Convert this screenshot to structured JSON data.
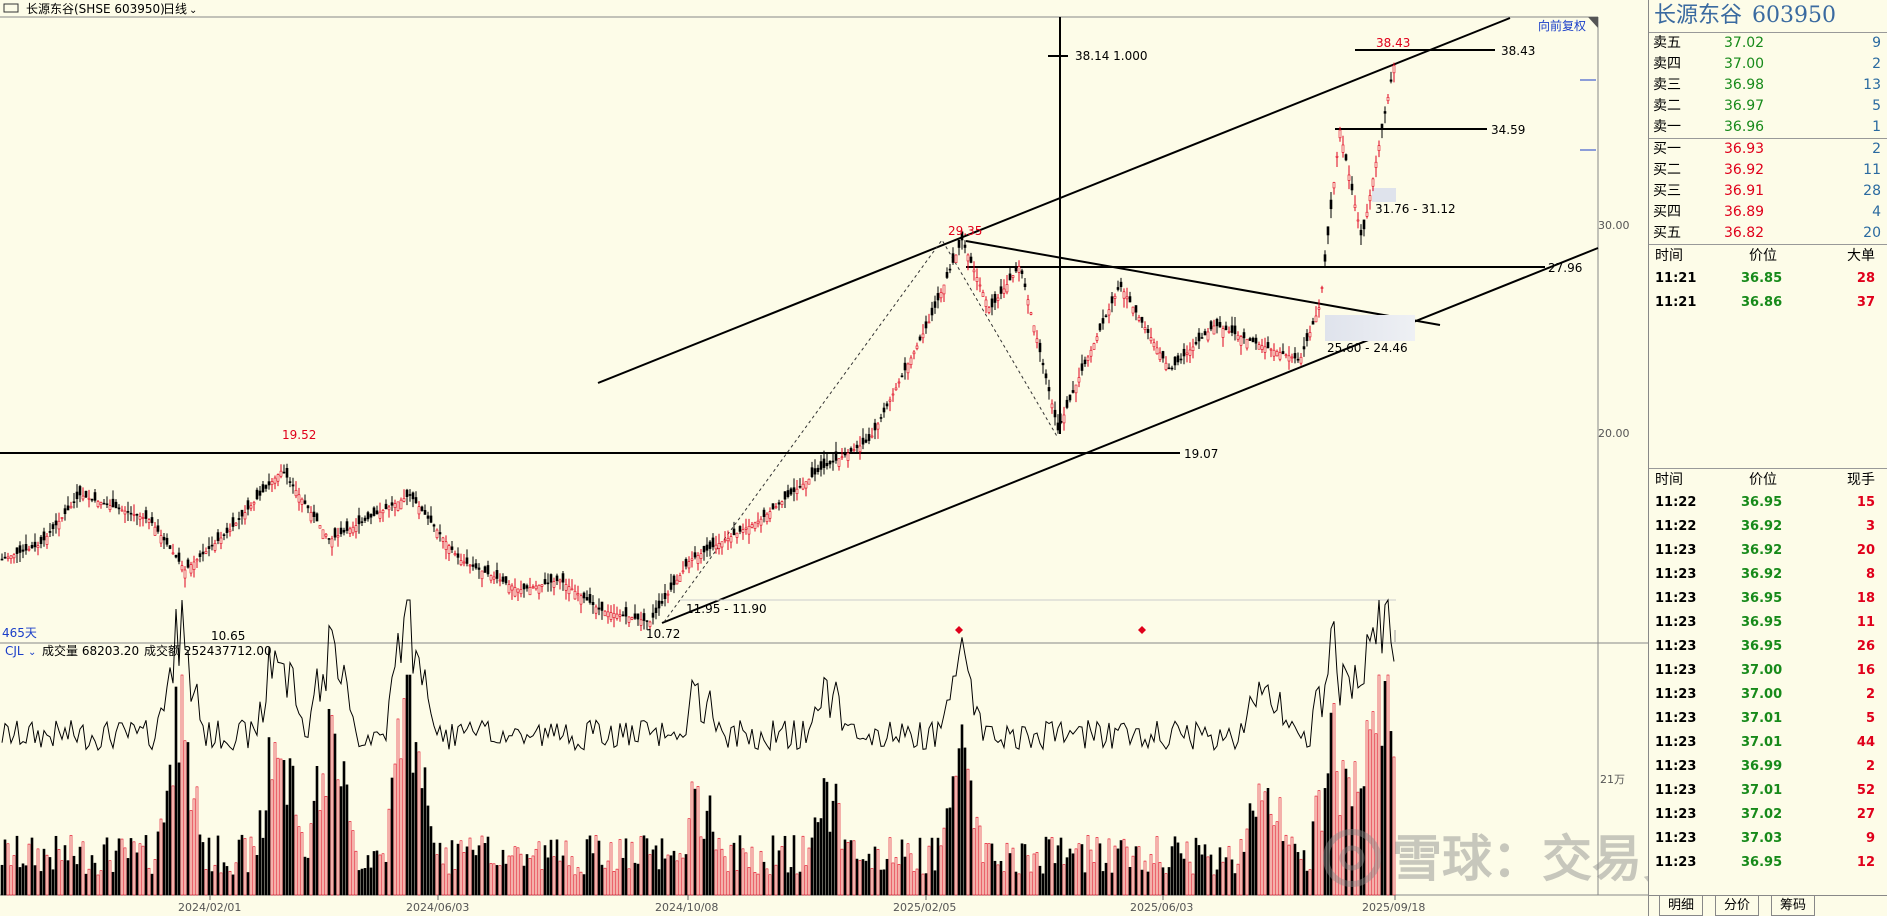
{
  "header": {
    "title": "长源东谷(SHSE 603950)",
    "period": "日线",
    "restore": "向前复权",
    "days": "465天"
  },
  "indicator": {
    "name": "CJL",
    "vol_label": "成交量 68203.20",
    "amt_label": "成交额 252437712.00",
    "axis_label": "21万"
  },
  "price_axis": [
    "30.00",
    "20.00"
  ],
  "x_axis": [
    "2024/02/01",
    "2024/06/03",
    "2024/10/08",
    "2025/02/05",
    "2025/06/03",
    "2025/09/18"
  ],
  "annotations": {
    "high_19_52": "19.52",
    "low_10_65": "10.65",
    "low_10_72": "10.72",
    "peak_29_35": "29.35",
    "top_38_43": "38.43",
    "line_38_43": "38.43",
    "line_34_59": "34.59",
    "line_27_96": "27.96",
    "line_19_07": "19.07",
    "vline_label": "38.14  1.000",
    "gap_31": "31.76 - 31.12",
    "gap_25": "25.60 - 24.46",
    "gap_11": "11.95 - 11.90"
  },
  "chart_data": {
    "type": "candlestick",
    "title": "长源东谷(SHSE 603950) 日线",
    "key_prices": {
      "high_2024": 19.52,
      "low_2024a": 10.65,
      "low_2024b": 10.72,
      "peak_2025_02": 29.35,
      "latest_high": 38.43
    },
    "horizontal_levels": [
      38.43,
      34.59,
      27.96,
      19.07
    ],
    "gaps": [
      [
        31.76,
        31.12
      ],
      [
        25.6,
        24.46
      ],
      [
        11.95,
        11.9
      ]
    ],
    "x_ticks": [
      "2024/02/01",
      "2024/06/03",
      "2024/10/08",
      "2025/02/05",
      "2025/06/03",
      "2025/09/18"
    ],
    "y_ticks": [
      20.0,
      30.0
    ],
    "volume_axis_tick": "21万"
  },
  "side": {
    "title": "长源东谷",
    "code": "603950",
    "asks": [
      {
        "label": "卖五",
        "price": "37.02",
        "vol": "9"
      },
      {
        "label": "卖四",
        "price": "37.00",
        "vol": "2"
      },
      {
        "label": "卖三",
        "price": "36.98",
        "vol": "13"
      },
      {
        "label": "卖二",
        "price": "36.97",
        "vol": "5"
      },
      {
        "label": "卖一",
        "price": "36.96",
        "vol": "1"
      }
    ],
    "bids": [
      {
        "label": "买一",
        "price": "36.93",
        "vol": "2"
      },
      {
        "label": "买二",
        "price": "36.92",
        "vol": "11"
      },
      {
        "label": "买三",
        "price": "36.91",
        "vol": "28"
      },
      {
        "label": "买四",
        "price": "36.89",
        "vol": "4"
      },
      {
        "label": "买五",
        "price": "36.82",
        "vol": "20"
      }
    ],
    "big_head": {
      "time": "时间",
      "price": "价位",
      "vol": "大单"
    },
    "big_orders": [
      {
        "time": "11:21",
        "price": "36.85",
        "vol": "28"
      },
      {
        "time": "11:21",
        "price": "36.86",
        "vol": "37"
      }
    ],
    "tick_head": {
      "time": "时间",
      "price": "价位",
      "vol": "现手"
    },
    "ticks": [
      {
        "time": "11:22",
        "price": "36.95",
        "vol": "15"
      },
      {
        "time": "11:22",
        "price": "36.92",
        "vol": "3"
      },
      {
        "time": "11:23",
        "price": "36.92",
        "vol": "20"
      },
      {
        "time": "11:23",
        "price": "36.92",
        "vol": "8"
      },
      {
        "time": "11:23",
        "price": "36.95",
        "vol": "18"
      },
      {
        "time": "11:23",
        "price": "36.95",
        "vol": "11"
      },
      {
        "time": "11:23",
        "price": "36.95",
        "vol": "26"
      },
      {
        "time": "11:23",
        "price": "37.00",
        "vol": "16"
      },
      {
        "time": "11:23",
        "price": "37.00",
        "vol": "2"
      },
      {
        "time": "11:23",
        "price": "37.01",
        "vol": "5"
      },
      {
        "time": "11:23",
        "price": "37.01",
        "vol": "44"
      },
      {
        "time": "11:23",
        "price": "36.99",
        "vol": "2"
      },
      {
        "time": "11:23",
        "price": "37.01",
        "vol": "52"
      },
      {
        "time": "11:23",
        "price": "37.02",
        "vol": "27"
      },
      {
        "time": "11:23",
        "price": "37.03",
        "vol": "9"
      },
      {
        "time": "11:23",
        "price": "36.95",
        "vol": "12"
      }
    ],
    "tabs": [
      "明细",
      "分价",
      "筹码"
    ]
  },
  "watermark": "雪球：交易员王起"
}
